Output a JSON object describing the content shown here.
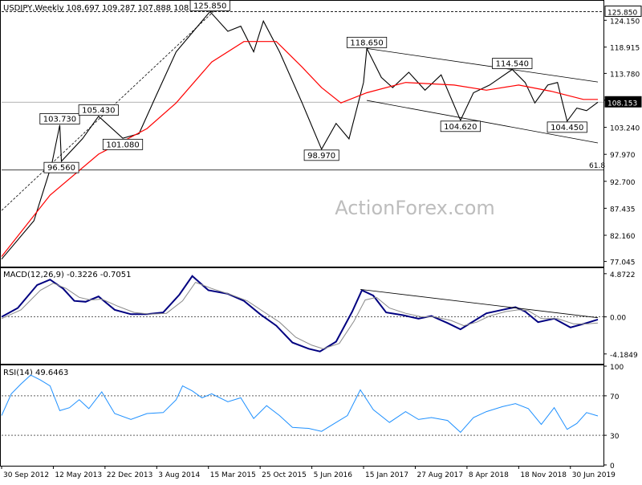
{
  "chart_data": {
    "type": "line",
    "panels": {
      "price": {
        "title": "USDJPY,Weekly  108.697 109.287 107.888 108.153",
        "yticks": [
          124.15,
          118.915,
          113.78,
          108.545,
          103.24,
          97.97,
          92.7,
          87.435,
          82.16,
          77.045
        ],
        "ylim": [
          76.2,
          127.8
        ],
        "last_price": 108.153,
        "key_levels": [
          125.85,
          108.153,
          94.9
        ],
        "fib_label": "61.8",
        "annotations": [
          {
            "label": "125.850",
            "date_index": 129,
            "value": 125.85
          },
          {
            "label": "118.650",
            "date_index": 226,
            "value": 118.65
          },
          {
            "label": "114.540",
            "date_index": 316,
            "value": 114.54
          },
          {
            "label": "104.620",
            "date_index": 284,
            "value": 104.62
          },
          {
            "label": "104.450",
            "date_index": 350,
            "value": 104.45
          },
          {
            "label": "103.730",
            "date_index": 36,
            "value": 103.73
          },
          {
            "label": "105.430",
            "date_index": 60,
            "value": 105.43
          },
          {
            "label": "101.080",
            "date_index": 75,
            "value": 101.08
          },
          {
            "label": "96.560",
            "date_index": 37,
            "value": 96.56
          },
          {
            "label": "98.970",
            "date_index": 198,
            "value": 98.97
          }
        ],
        "series": [
          {
            "name": "close",
            "color": "#000000",
            "values": [
              [
                0,
                77.5
              ],
              [
                20,
                85
              ],
              [
                31,
                96
              ],
              [
                36,
                103.7
              ],
              [
                37,
                96.6
              ],
              [
                50,
                101
              ],
              [
                60,
                105.4
              ],
              [
                75,
                101.1
              ],
              [
                85,
                102
              ],
              [
                95,
                109
              ],
              [
                108,
                118
              ],
              [
                129,
                125.85
              ],
              [
                140,
                122
              ],
              [
                148,
                123
              ],
              [
                156,
                118
              ],
              [
                162,
                124
              ],
              [
                172,
                118
              ],
              [
                186,
                108
              ],
              [
                198,
                98.97
              ],
              [
                207,
                104
              ],
              [
                215,
                101
              ],
              [
                224,
                112
              ],
              [
                226,
                118.65
              ],
              [
                235,
                113
              ],
              [
                242,
                111
              ],
              [
                252,
                114
              ],
              [
                262,
                110.5
              ],
              [
                272,
                113.5
              ],
              [
                284,
                104.62
              ],
              [
                292,
                110
              ],
              [
                302,
                111.5
              ],
              [
                316,
                114.54
              ],
              [
                324,
                112
              ],
              [
                330,
                108
              ],
              [
                338,
                111.5
              ],
              [
                344,
                112
              ],
              [
                350,
                104.45
              ],
              [
                356,
                107
              ],
              [
                362,
                106.5
              ],
              [
                369,
                108.15
              ]
            ]
          },
          {
            "name": "MA",
            "color": "#ff0000",
            "values": [
              [
                0,
                78
              ],
              [
                30,
                90
              ],
              [
                60,
                98
              ],
              [
                90,
                103
              ],
              [
                108,
                108
              ],
              [
                130,
                116
              ],
              [
                150,
                120
              ],
              [
                170,
                120
              ],
              [
                186,
                115
              ],
              [
                198,
                111
              ],
              [
                210,
                108
              ],
              [
                226,
                110
              ],
              [
                250,
                112
              ],
              [
                280,
                111.5
              ],
              [
                300,
                110.5
              ],
              [
                320,
                111.5
              ],
              [
                340,
                110.3
              ],
              [
                360,
                108.7
              ],
              [
                369,
                108.7
              ]
            ]
          }
        ],
        "channel_lines": [
          {
            "from": [
              226,
              118.65
            ],
            "to": [
              369,
              112.1
            ]
          },
          {
            "from": [
              226,
              108.5
            ],
            "to": [
              369,
              100.2
            ]
          },
          {
            "from": [
              0,
              87
            ],
            "to": [
              135,
              127
            ]
          }
        ]
      },
      "macd": {
        "title": "MACD(12,26,9) -0.3226 -0.7051",
        "yticks": [
          4.8722,
          0.0,
          -4.1849
        ],
        "ylim": [
          -5.2,
          5.4
        ],
        "series": [
          {
            "name": "MACD",
            "color": "#000080",
            "values": [
              [
                0,
                0
              ],
              [
                10,
                1
              ],
              [
                22,
                3.6
              ],
              [
                30,
                4.2
              ],
              [
                38,
                3.2
              ],
              [
                45,
                1.8
              ],
              [
                52,
                1.7
              ],
              [
                60,
                2.3
              ],
              [
                70,
                0.8
              ],
              [
                80,
                0.3
              ],
              [
                90,
                0.3
              ],
              [
                100,
                0.5
              ],
              [
                110,
                2.5
              ],
              [
                118,
                4.6
              ],
              [
                128,
                3.0
              ],
              [
                140,
                2.6
              ],
              [
                150,
                1.8
              ],
              [
                160,
                0.3
              ],
              [
                170,
                -1.0
              ],
              [
                180,
                -2.9
              ],
              [
                190,
                -3.6
              ],
              [
                197,
                -3.9
              ],
              [
                207,
                -2.8
              ],
              [
                217,
                0.6
              ],
              [
                223,
                3.0
              ],
              [
                230,
                2.4
              ],
              [
                238,
                0.5
              ],
              [
                248,
                0.2
              ],
              [
                258,
                -0.2
              ],
              [
                266,
                0.1
              ],
              [
                276,
                -0.7
              ],
              [
                284,
                -1.4
              ],
              [
                292,
                -0.5
              ],
              [
                300,
                0.4
              ],
              [
                310,
                0.8
              ],
              [
                318,
                1.1
              ],
              [
                324,
                0.6
              ],
              [
                332,
                -0.6
              ],
              [
                342,
                -0.2
              ],
              [
                352,
                -1.2
              ],
              [
                360,
                -0.8
              ],
              [
                369,
                -0.3
              ]
            ]
          },
          {
            "name": "Signal",
            "color": "#8a8a8a",
            "values": [
              [
                0,
                -0.2
              ],
              [
                12,
                0.8
              ],
              [
                24,
                3.0
              ],
              [
                32,
                3.8
              ],
              [
                40,
                3.2
              ],
              [
                48,
                2.2
              ],
              [
                55,
                1.9
              ],
              [
                62,
                2.0
              ],
              [
                72,
                1.2
              ],
              [
                82,
                0.5
              ],
              [
                92,
                0.3
              ],
              [
                102,
                0.4
              ],
              [
                112,
                1.8
              ],
              [
                120,
                3.9
              ],
              [
                130,
                3.2
              ],
              [
                142,
                2.5
              ],
              [
                152,
                1.8
              ],
              [
                162,
                0.6
              ],
              [
                172,
                -0.6
              ],
              [
                182,
                -2.3
              ],
              [
                192,
                -3.2
              ],
              [
                199,
                -3.6
              ],
              [
                209,
                -3.0
              ],
              [
                218,
                -0.5
              ],
              [
                225,
                1.9
              ],
              [
                232,
                2.2
              ],
              [
                240,
                1.0
              ],
              [
                250,
                0.4
              ],
              [
                260,
                0.0
              ],
              [
                268,
                0.0
              ],
              [
                278,
                -0.4
              ],
              [
                286,
                -1.0
              ],
              [
                294,
                -0.6
              ],
              [
                302,
                0.1
              ],
              [
                312,
                0.6
              ],
              [
                320,
                0.8
              ],
              [
                326,
                0.7
              ],
              [
                334,
                -0.2
              ],
              [
                344,
                -0.2
              ],
              [
                354,
                -0.8
              ],
              [
                362,
                -0.8
              ],
              [
                369,
                -0.7
              ]
            ]
          }
        ],
        "trendline": {
          "from": [
            222,
            3.1
          ],
          "to": [
            369,
            -0.1
          ]
        }
      },
      "rsi": {
        "title": "RSI(14) 49.6463",
        "yticks": [
          100,
          70,
          30,
          0
        ],
        "ylim": [
          0,
          100
        ],
        "series": [
          {
            "name": "RSI",
            "color": "#1e90ff",
            "values": [
              [
                0,
                50
              ],
              [
                6,
                72
              ],
              [
                12,
                82
              ],
              [
                18,
                91
              ],
              [
                24,
                86
              ],
              [
                30,
                80
              ],
              [
                36,
                55
              ],
              [
                42,
                58
              ],
              [
                48,
                66
              ],
              [
                54,
                57
              ],
              [
                62,
                74
              ],
              [
                70,
                52
              ],
              [
                80,
                46
              ],
              [
                90,
                52
              ],
              [
                100,
                53
              ],
              [
                108,
                66
              ],
              [
                112,
                80
              ],
              [
                118,
                75
              ],
              [
                124,
                68
              ],
              [
                130,
                72
              ],
              [
                140,
                64
              ],
              [
                148,
                68
              ],
              [
                156,
                47
              ],
              [
                164,
                60
              ],
              [
                172,
                50
              ],
              [
                180,
                38
              ],
              [
                190,
                37
              ],
              [
                198,
                34
              ],
              [
                206,
                42
              ],
              [
                214,
                50
              ],
              [
                222,
                76
              ],
              [
                230,
                56
              ],
              [
                240,
                43
              ],
              [
                250,
                54
              ],
              [
                258,
                46
              ],
              [
                266,
                48
              ],
              [
                276,
                45
              ],
              [
                284,
                33
              ],
              [
                292,
                48
              ],
              [
                300,
                54
              ],
              [
                310,
                59
              ],
              [
                318,
                62
              ],
              [
                326,
                57
              ],
              [
                334,
                41
              ],
              [
                342,
                58
              ],
              [
                350,
                36
              ],
              [
                356,
                42
              ],
              [
                362,
                53
              ],
              [
                369,
                49.6
              ]
            ]
          }
        ]
      }
    },
    "x_labels": [
      "30 Sep 2012",
      "12 May 2013",
      "22 Dec 2013",
      "3 Aug 2014",
      "15 Mar 2015",
      "25 Oct 2015",
      "5 Jun 2016",
      "15 Jan 2017",
      "27 Aug 2017",
      "8 Apr 2018",
      "18 Nov 2018",
      "30 Jun 2019"
    ],
    "x_label_index": [
      0,
      32,
      64,
      96,
      128,
      160,
      192,
      224,
      256,
      288,
      320,
      352
    ],
    "x_max_index": 369,
    "watermark": "ActionForex.com",
    "grid": false
  }
}
